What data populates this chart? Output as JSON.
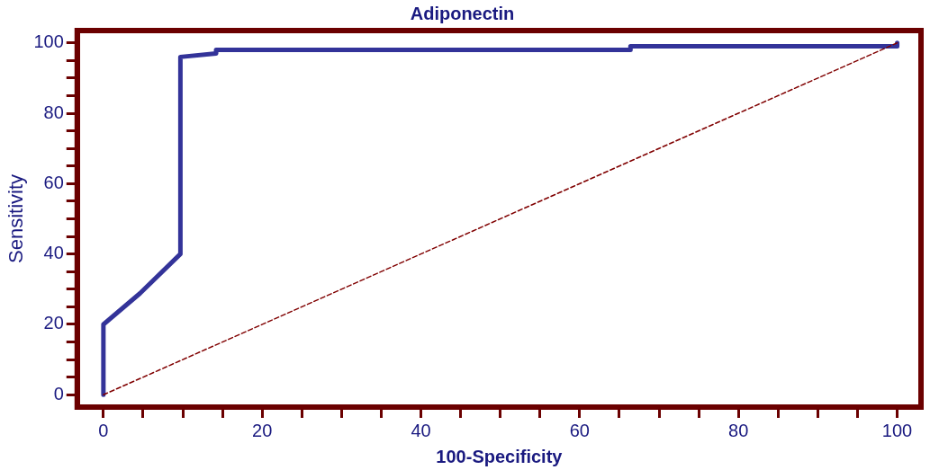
{
  "chart_data": {
    "type": "line",
    "title": "Adiponectin",
    "xlabel": "100-Specificity",
    "ylabel": "Sensitivity",
    "xlim": [
      -3.3,
      103
    ],
    "ylim": [
      -3.5,
      103.5
    ],
    "xticks": [
      0,
      {
        "value": 5,
        "label": null
      },
      {
        "value": 10,
        "label": null
      },
      {
        "value": 15,
        "label": null
      },
      20,
      {
        "value": 25,
        "label": null
      },
      {
        "value": 30,
        "label": null
      },
      {
        "value": 35,
        "label": null
      },
      40,
      {
        "value": 45,
        "label": null
      },
      {
        "value": 50,
        "label": null
      },
      {
        "value": 55,
        "label": null
      },
      60,
      {
        "value": 65,
        "label": null
      },
      {
        "value": 70,
        "label": null
      },
      {
        "value": 75,
        "label": null
      },
      80,
      {
        "value": 85,
        "label": null
      },
      {
        "value": 90,
        "label": null
      },
      {
        "value": 95,
        "label": null
      },
      100
    ],
    "yticks": [
      0,
      {
        "value": 5,
        "label": null
      },
      {
        "value": 10,
        "label": null
      },
      {
        "value": 15,
        "label": null
      },
      20,
      {
        "value": 25,
        "label": null
      },
      {
        "value": 30,
        "label": null
      },
      {
        "value": 35,
        "label": null
      },
      40,
      {
        "value": 45,
        "label": null
      },
      {
        "value": 50,
        "label": null
      },
      {
        "value": 55,
        "label": null
      },
      60,
      {
        "value": 65,
        "label": null
      },
      {
        "value": 70,
        "label": null
      },
      {
        "value": 75,
        "label": null
      },
      80,
      {
        "value": 85,
        "label": null
      },
      {
        "value": 90,
        "label": null
      },
      {
        "value": 95,
        "label": null
      },
      100
    ],
    "grid": false,
    "legend": false,
    "marker": "none",
    "series": [
      {
        "color": "#333399",
        "line_style": "solid",
        "x": [
          0,
          0,
          4.6,
          9.7,
          9.7,
          14.2,
          14.2,
          66.4,
          66.4,
          100,
          100
        ],
        "values": [
          0,
          20,
          28.8,
          40,
          96,
          97,
          98,
          98,
          99,
          99,
          100
        ]
      },
      {
        "color": "#800000",
        "line_style": "dashed",
        "x": [
          0,
          100
        ],
        "values": [
          0,
          100
        ]
      }
    ]
  }
}
